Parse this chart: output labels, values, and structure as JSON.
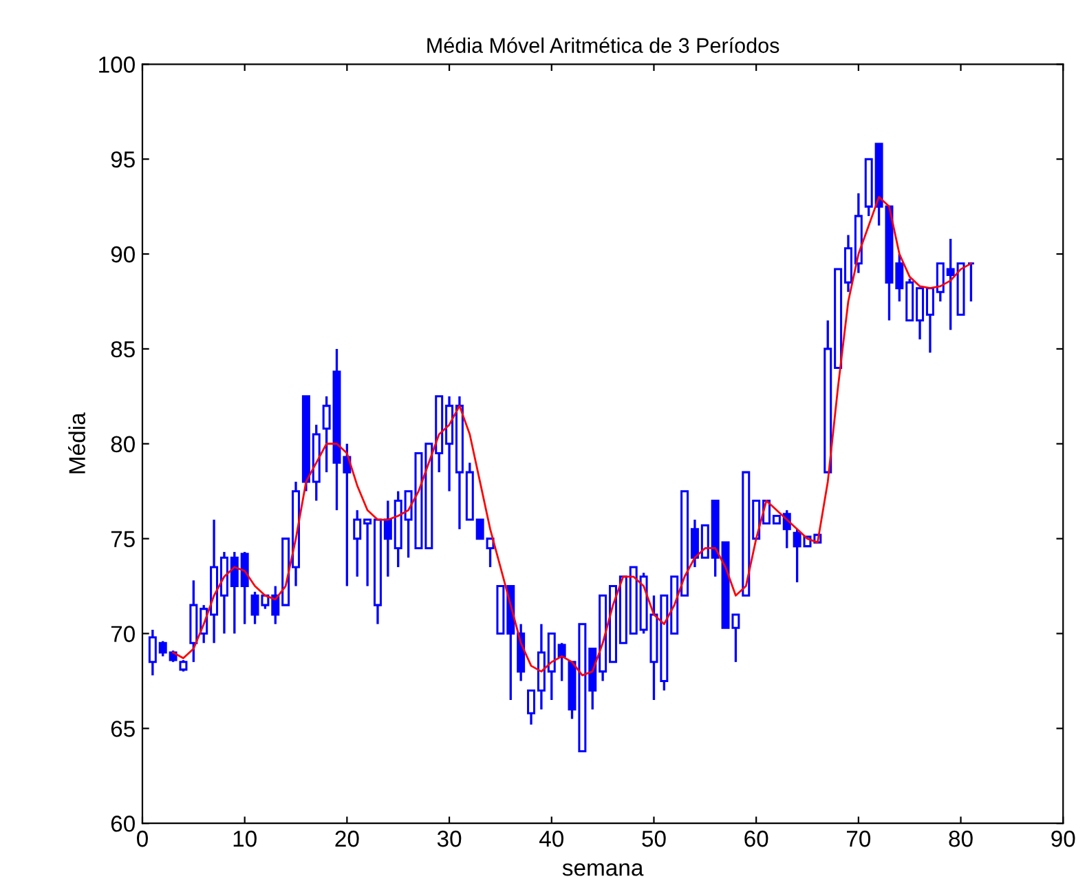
{
  "chart_data": {
    "type": "candlestick",
    "title": "Média Móvel Aritmética de 3 Períodos",
    "xlabel": "semana",
    "ylabel": "Média",
    "color": "#0000ff",
    "x": [
      1,
      2,
      3,
      4,
      5,
      6,
      7,
      8,
      9,
      10,
      11,
      12,
      13,
      14,
      15,
      16,
      17,
      18,
      19,
      20,
      21,
      22,
      23,
      24,
      25,
      26,
      27,
      28,
      29,
      30,
      31,
      32,
      33,
      34,
      35,
      36,
      37,
      38,
      39,
      40,
      41,
      42,
      43,
      44,
      45,
      46,
      47,
      48,
      49,
      50,
      51,
      52,
      53,
      54,
      55,
      56,
      57,
      58,
      59,
      60,
      61,
      62,
      63,
      64,
      65,
      66,
      67,
      68,
      69,
      70,
      71,
      72,
      73,
      74,
      75,
      76,
      77,
      78,
      79,
      80,
      81
    ],
    "ohlc": [
      [
        68.5,
        70.2,
        67.8,
        69.8
      ],
      [
        69.5,
        69.6,
        68.8,
        69.0
      ],
      [
        69.0,
        69.1,
        68.5,
        68.6
      ],
      [
        68.1,
        68.6,
        68.0,
        68.5
      ],
      [
        69.5,
        72.8,
        68.5,
        71.5
      ],
      [
        70.0,
        71.5,
        69.5,
        71.3
      ],
      [
        71.0,
        76.0,
        69.5,
        73.5
      ],
      [
        72.0,
        74.3,
        70.0,
        74.0
      ],
      [
        74.0,
        74.3,
        70.0,
        72.5
      ],
      [
        74.2,
        74.3,
        70.5,
        72.5
      ],
      [
        72.0,
        72.2,
        70.5,
        71.0
      ],
      [
        71.5,
        72.0,
        71.3,
        72.0
      ],
      [
        72.0,
        72.5,
        70.5,
        71.0
      ],
      [
        71.5,
        75.0,
        71.5,
        75.0
      ],
      [
        73.5,
        78.0,
        72.5,
        77.5
      ],
      [
        82.5,
        82.5,
        77.5,
        78.0
      ],
      [
        78.0,
        81.0,
        77.0,
        80.5
      ],
      [
        80.8,
        82.5,
        78.5,
        82.0
      ],
      [
        83.8,
        85.0,
        76.5,
        79.0
      ],
      [
        79.3,
        80.0,
        72.5,
        78.5
      ],
      [
        75.0,
        76.5,
        73.0,
        76.0
      ],
      [
        75.8,
        76.0,
        72.5,
        76.0
      ],
      [
        71.5,
        76.0,
        70.5,
        76.0
      ],
      [
        76.0,
        77.0,
        73.0,
        75.0
      ],
      [
        74.5,
        77.5,
        73.5,
        77.0
      ],
      [
        76.0,
        77.5,
        74.0,
        77.5
      ],
      [
        74.5,
        79.5,
        74.5,
        79.5
      ],
      [
        74.5,
        80.0,
        74.5,
        80.0
      ],
      [
        79.5,
        82.5,
        78.5,
        82.5
      ],
      [
        80.0,
        82.5,
        77.5,
        82.0
      ],
      [
        78.5,
        82.5,
        75.5,
        82.0
      ],
      [
        76.0,
        79.0,
        76.0,
        78.5
      ],
      [
        76.0,
        76.0,
        75.0,
        75.0
      ],
      [
        74.5,
        75.0,
        73.5,
        75.0
      ],
      [
        70.0,
        72.5,
        70.0,
        72.5
      ],
      [
        72.5,
        72.5,
        66.5,
        70.0
      ],
      [
        70.0,
        70.5,
        67.5,
        68.0
      ],
      [
        65.8,
        67.0,
        65.2,
        67.0
      ],
      [
        67.0,
        70.5,
        66.0,
        69.0
      ],
      [
        68.0,
        70.0,
        66.5,
        70.0
      ],
      [
        69.4,
        69.5,
        67.5,
        68.8
      ],
      [
        68.5,
        68.5,
        65.5,
        66.0
      ],
      [
        63.8,
        70.5,
        63.8,
        70.5
      ],
      [
        69.2,
        69.2,
        66.0,
        67.0
      ],
      [
        68.0,
        72.0,
        67.5,
        72.0
      ],
      [
        68.5,
        72.5,
        68.5,
        72.5
      ],
      [
        69.5,
        73.0,
        69.5,
        73.0
      ],
      [
        70.0,
        73.5,
        70.0,
        73.5
      ],
      [
        70.2,
        73.2,
        70.0,
        73.0
      ],
      [
        68.5,
        72.0,
        66.5,
        71.0
      ],
      [
        67.5,
        72.0,
        67.0,
        72.0
      ],
      [
        70.0,
        73.0,
        70.0,
        73.0
      ],
      [
        72.0,
        77.5,
        72.0,
        77.5
      ],
      [
        75.5,
        76.0,
        73.5,
        74.0
      ],
      [
        74.0,
        75.7,
        74.0,
        75.7
      ],
      [
        77.0,
        77.0,
        73.0,
        74.0
      ],
      [
        74.8,
        74.8,
        70.3,
        70.3
      ],
      [
        70.3,
        71.0,
        68.5,
        71.0
      ],
      [
        72.0,
        78.5,
        72.0,
        78.5
      ],
      [
        75.0,
        77.0,
        75.0,
        77.0
      ],
      [
        75.8,
        77.0,
        75.8,
        77.0
      ],
      [
        75.8,
        76.2,
        75.8,
        76.2
      ],
      [
        76.3,
        76.5,
        74.5,
        75.5
      ],
      [
        75.3,
        75.5,
        72.7,
        74.6
      ],
      [
        74.6,
        75.1,
        74.6,
        75.1
      ],
      [
        74.8,
        75.2,
        74.8,
        75.2
      ],
      [
        78.5,
        86.5,
        78.5,
        85.0
      ],
      [
        84.0,
        89.2,
        84.0,
        89.2
      ],
      [
        88.5,
        91.0,
        88.0,
        90.3
      ],
      [
        89.5,
        93.2,
        89.0,
        92.0
      ],
      [
        92.5,
        95.0,
        92.0,
        95.0
      ],
      [
        95.8,
        95.8,
        91.5,
        92.5
      ],
      [
        92.5,
        92.5,
        86.5,
        88.5
      ],
      [
        89.5,
        90.0,
        87.5,
        88.2
      ],
      [
        86.5,
        88.7,
        86.5,
        88.5
      ],
      [
        86.5,
        88.2,
        85.5,
        88.2
      ],
      [
        86.8,
        88.2,
        84.8,
        88.2
      ],
      [
        88.0,
        89.5,
        87.5,
        89.5
      ],
      [
        89.2,
        90.8,
        86.0,
        88.9
      ],
      [
        86.8,
        89.5,
        86.8,
        89.5
      ],
      [
        89.5,
        89.5,
        87.5,
        89.5
      ]
    ],
    "series": [
      {
        "type": "line",
        "color": "#ff0000",
        "x": [
          3,
          4,
          5,
          6,
          7,
          8,
          9,
          10,
          11,
          12,
          13,
          14,
          15,
          16,
          17,
          18,
          19,
          20,
          21,
          22,
          23,
          24,
          25,
          26,
          27,
          28,
          29,
          30,
          31,
          32,
          33,
          34,
          35,
          36,
          37,
          38,
          39,
          40,
          41,
          42,
          43,
          44,
          45,
          46,
          47,
          48,
          49,
          50,
          51,
          52,
          53,
          54,
          55,
          56,
          57,
          58,
          59,
          60,
          61,
          62,
          63,
          64,
          65,
          66,
          67,
          68,
          69,
          70,
          71,
          72,
          73,
          74,
          75,
          76,
          77,
          78,
          79,
          80,
          81
        ],
        "values": [
          69,
          68.7,
          69.2,
          70.5,
          72,
          73,
          73.5,
          73.3,
          72.5,
          72,
          71.8,
          72.5,
          75,
          78,
          79,
          80,
          80,
          79.5,
          77.8,
          76.5,
          76,
          76,
          76.2,
          76.5,
          77.5,
          79,
          80.5,
          81,
          82,
          80.5,
          78,
          75.5,
          73.5,
          71.5,
          69.5,
          68.3,
          68,
          68.5,
          68.8,
          68.5,
          67.8,
          68,
          69.5,
          71.5,
          73,
          73,
          72.5,
          71,
          70.5,
          71.5,
          73,
          74,
          74.5,
          74.5,
          73.5,
          72,
          72.5,
          75,
          77,
          76.5,
          76,
          75.5,
          75,
          74.8,
          78,
          83,
          87.5,
          90,
          91.5,
          93,
          92.5,
          90,
          88.8,
          88.3,
          88.2,
          88.3,
          88.6,
          89.2,
          89.5
        ]
      }
    ],
    "xlim": [
      0,
      90
    ],
    "xticks": [
      0,
      10,
      20,
      30,
      40,
      50,
      60,
      70,
      80,
      90
    ],
    "ylim": [
      60,
      100
    ],
    "yticks": [
      60,
      65,
      70,
      75,
      80,
      85,
      90,
      95,
      100
    ]
  }
}
